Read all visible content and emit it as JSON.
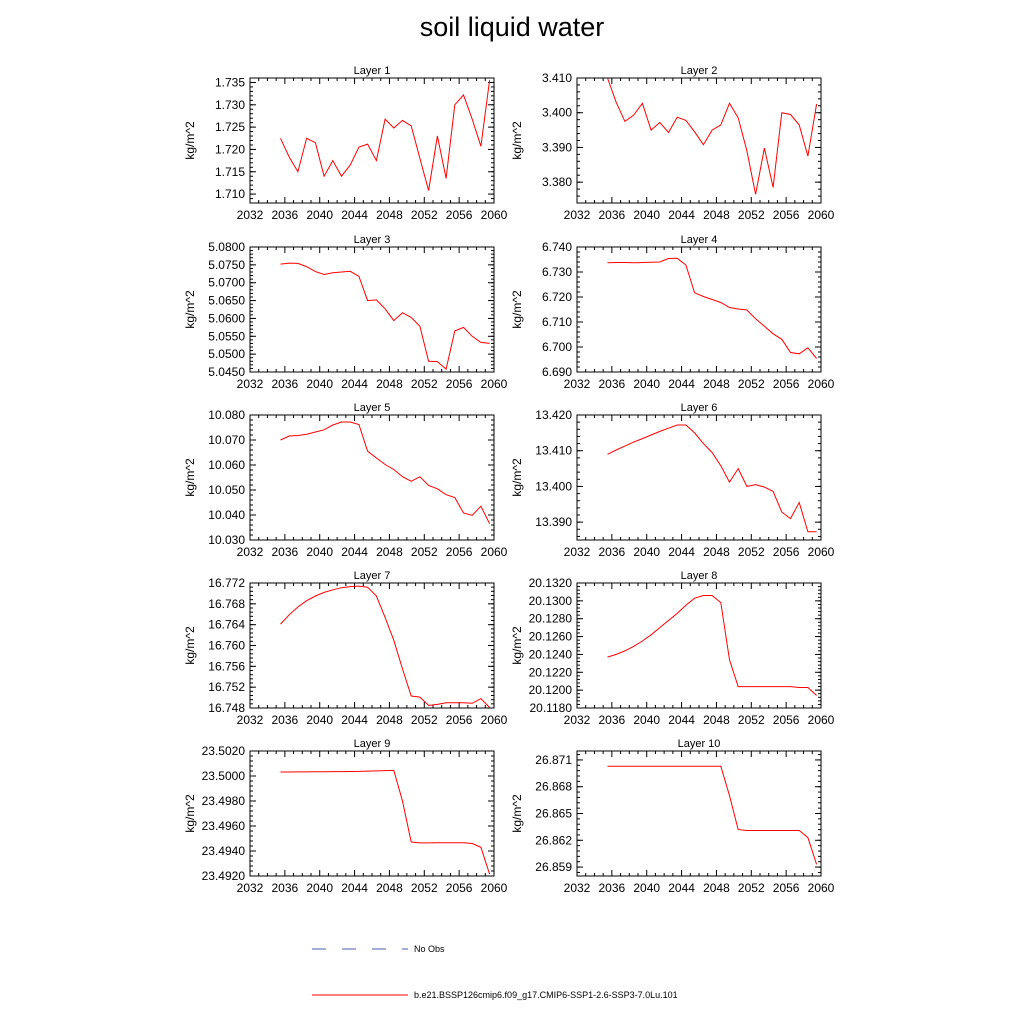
{
  "title": "soil liquid water",
  "chart_data": [
    {
      "type": "line",
      "title": "Layer 1",
      "ylabel": "kg/m^2",
      "xlim": [
        2032,
        2060
      ],
      "ylim": [
        1.708,
        1.736
      ],
      "x_ticks": [
        2032,
        2036,
        2040,
        2044,
        2048,
        2052,
        2056,
        2060
      ],
      "y_ticks": [
        1.71,
        1.715,
        1.72,
        1.725,
        1.73,
        1.735
      ],
      "y_tick_labels": [
        "1.710",
        "1.715",
        "1.720",
        "1.725",
        "1.730",
        "1.735"
      ],
      "series": [
        {
          "name": "b.e21.BSSP126cmip6.f09_g17.CMIP6-SSP1-2.6-SSP3-7.0Lu.101",
          "x": [
            2035.5,
            2036.5,
            2037.5,
            2038.5,
            2039.5,
            2040.5,
            2041.5,
            2042.5,
            2043.5,
            2044.5,
            2045.5,
            2046.5,
            2047.5,
            2048.5,
            2049.5,
            2050.5,
            2051.5,
            2052.5,
            2053.5,
            2054.5,
            2055.5,
            2056.5,
            2057.5,
            2058.5,
            2059.5
          ],
          "y": [
            1.7225,
            1.7183,
            1.715,
            1.7225,
            1.7215,
            1.714,
            1.7175,
            1.714,
            1.7165,
            1.7205,
            1.7212,
            1.7175,
            1.7268,
            1.7248,
            1.7265,
            1.7253,
            1.718,
            1.7108,
            1.723,
            1.7135,
            1.73,
            1.7322,
            1.7268,
            1.7207,
            1.7355
          ]
        }
      ]
    },
    {
      "type": "line",
      "title": "Layer 2",
      "ylabel": "kg/m^2",
      "xlim": [
        2032,
        2060
      ],
      "ylim": [
        3.374,
        3.41
      ],
      "x_ticks": [
        2032,
        2036,
        2040,
        2044,
        2048,
        2052,
        2056,
        2060
      ],
      "y_ticks": [
        3.38,
        3.39,
        3.4,
        3.41
      ],
      "y_tick_labels": [
        "3.380",
        "3.390",
        "3.400",
        "3.410"
      ],
      "series": [
        {
          "name": "b.e21.BSSP126cmip6.f09_g17.CMIP6-SSP1-2.6-SSP3-7.0Lu.101",
          "x": [
            2035.5,
            2036.5,
            2037.5,
            2038.5,
            2039.5,
            2040.5,
            2041.5,
            2042.5,
            2043.5,
            2044.5,
            2045.5,
            2046.5,
            2047.5,
            2048.5,
            2049.5,
            2050.5,
            2051.5,
            2052.5,
            2053.5,
            2054.5,
            2055.5,
            2056.5,
            2057.5,
            2058.5,
            2059.5
          ],
          "y": [
            3.41,
            3.403,
            3.3975,
            3.3993,
            3.4027,
            3.395,
            3.3972,
            3.3943,
            3.3987,
            3.3978,
            3.3945,
            3.3908,
            3.395,
            3.3965,
            3.4027,
            3.3985,
            3.389,
            3.3765,
            3.3898,
            3.3785,
            3.4,
            3.3995,
            3.3965,
            3.3875,
            3.4025
          ]
        }
      ]
    },
    {
      "type": "line",
      "title": "Layer 3",
      "ylabel": "kg/m^2",
      "xlim": [
        2032,
        2060
      ],
      "ylim": [
        5.045,
        5.08
      ],
      "x_ticks": [
        2032,
        2036,
        2040,
        2044,
        2048,
        2052,
        2056,
        2060
      ],
      "y_ticks": [
        5.045,
        5.05,
        5.055,
        5.06,
        5.065,
        5.07,
        5.075,
        5.08
      ],
      "y_tick_labels": [
        "5.0450",
        "5.0500",
        "5.0550",
        "5.0600",
        "5.0650",
        "5.0700",
        "5.0750",
        "5.0800"
      ],
      "series": [
        {
          "name": "b.e21.BSSP126cmip6.f09_g17.CMIP6-SSP1-2.6-SSP3-7.0Lu.101",
          "x": [
            2035.5,
            2036.5,
            2037.5,
            2038.5,
            2039.5,
            2040.5,
            2041.5,
            2042.5,
            2043.5,
            2044.5,
            2045.5,
            2046.5,
            2047.5,
            2048.5,
            2049.5,
            2050.5,
            2051.5,
            2052.5,
            2053.5,
            2054.5,
            2055.5,
            2056.5,
            2057.5,
            2058.5,
            2059.5
          ],
          "y": [
            5.0752,
            5.0755,
            5.0754,
            5.0745,
            5.0731,
            5.0723,
            5.0728,
            5.073,
            5.0732,
            5.0718,
            5.065,
            5.0652,
            5.0627,
            5.0594,
            5.0616,
            5.0603,
            5.0578,
            5.048,
            5.0479,
            5.0458,
            5.0565,
            5.0575,
            5.055,
            5.0533,
            5.053
          ]
        }
      ]
    },
    {
      "type": "line",
      "title": "Layer 4",
      "ylabel": "kg/m^2",
      "xlim": [
        2032,
        2060
      ],
      "ylim": [
        6.69,
        6.74
      ],
      "x_ticks": [
        2032,
        2036,
        2040,
        2044,
        2048,
        2052,
        2056,
        2060
      ],
      "y_ticks": [
        6.69,
        6.7,
        6.71,
        6.72,
        6.73,
        6.74
      ],
      "y_tick_labels": [
        "6.690",
        "6.700",
        "6.710",
        "6.720",
        "6.730",
        "6.740"
      ],
      "series": [
        {
          "name": "b.e21.BSSP126cmip6.f09_g17.CMIP6-SSP1-2.6-SSP3-7.0Lu.101",
          "x": [
            2035.5,
            2036.5,
            2037.5,
            2038.5,
            2039.5,
            2040.5,
            2041.5,
            2042.5,
            2043.5,
            2044.5,
            2045.5,
            2046.5,
            2047.5,
            2048.5,
            2049.5,
            2050.5,
            2051.5,
            2052.5,
            2053.5,
            2054.5,
            2055.5,
            2056.5,
            2057.5,
            2058.5,
            2059.5
          ],
          "y": [
            6.7337,
            6.7338,
            6.7338,
            6.7337,
            6.7338,
            6.7339,
            6.734,
            6.7354,
            6.7355,
            6.7328,
            6.7217,
            6.7202,
            6.719,
            6.7178,
            6.7158,
            6.7152,
            6.7148,
            6.7113,
            6.7083,
            6.7053,
            6.7031,
            6.6978,
            6.6973,
            6.6997,
            6.6954
          ]
        }
      ]
    },
    {
      "type": "line",
      "title": "Layer 5",
      "ylabel": "kg/m^2",
      "xlim": [
        2032,
        2060
      ],
      "ylim": [
        10.03,
        10.08
      ],
      "x_ticks": [
        2032,
        2036,
        2040,
        2044,
        2048,
        2052,
        2056,
        2060
      ],
      "y_ticks": [
        10.03,
        10.04,
        10.05,
        10.06,
        10.07,
        10.08
      ],
      "y_tick_labels": [
        "10.030",
        "10.040",
        "10.050",
        "10.060",
        "10.070",
        "10.080"
      ],
      "series": [
        {
          "name": "b.e21.BSSP126cmip6.f09_g17.CMIP6-SSP1-2.6-SSP3-7.0Lu.101",
          "x": [
            2035.5,
            2036.5,
            2037.5,
            2038.5,
            2039.5,
            2040.5,
            2041.5,
            2042.5,
            2043.5,
            2044.5,
            2045.5,
            2046.5,
            2047.5,
            2048.5,
            2049.5,
            2050.5,
            2051.5,
            2052.5,
            2053.5,
            2054.5,
            2055.5,
            2056.5,
            2057.5,
            2058.5,
            2059.5
          ],
          "y": [
            10.07,
            10.0716,
            10.0718,
            10.0723,
            10.0732,
            10.0741,
            10.076,
            10.0772,
            10.0772,
            10.0762,
            10.0655,
            10.0628,
            10.0602,
            10.0582,
            10.0553,
            10.0535,
            10.0553,
            10.0518,
            10.0505,
            10.0481,
            10.047,
            10.0408,
            10.0399,
            10.0435,
            10.0365
          ]
        }
      ]
    },
    {
      "type": "line",
      "title": "Layer 6",
      "ylabel": "kg/m^2",
      "xlim": [
        2032,
        2060
      ],
      "ylim": [
        13.385,
        13.42
      ],
      "x_ticks": [
        2032,
        2036,
        2040,
        2044,
        2048,
        2052,
        2056,
        2060
      ],
      "y_ticks": [
        13.39,
        13.4,
        13.41,
        13.42
      ],
      "y_tick_labels": [
        "13.390",
        "13.400",
        "13.410",
        "13.420"
      ],
      "series": [
        {
          "name": "b.e21.BSSP126cmip6.f09_g17.CMIP6-SSP1-2.6-SSP3-7.0Lu.101",
          "x": [
            2035.5,
            2036.5,
            2037.5,
            2038.5,
            2039.5,
            2040.5,
            2041.5,
            2042.5,
            2043.5,
            2044.5,
            2045.5,
            2046.5,
            2047.5,
            2048.5,
            2049.5,
            2050.5,
            2051.5,
            2052.5,
            2053.5,
            2054.5,
            2055.5,
            2056.5,
            2057.5,
            2058.5,
            2059.5
          ],
          "y": [
            13.409,
            13.4102,
            13.4113,
            13.4124,
            13.4134,
            13.4144,
            13.4154,
            13.4163,
            13.4172,
            13.4172,
            13.415,
            13.412,
            13.4095,
            13.4058,
            13.4012,
            13.405,
            13.4,
            13.4005,
            13.3998,
            13.3986,
            13.3928,
            13.391,
            13.3955,
            13.3873,
            13.3873
          ]
        }
      ]
    },
    {
      "type": "line",
      "title": "Layer 7",
      "ylabel": "kg/m^2",
      "xlim": [
        2032,
        2060
      ],
      "ylim": [
        16.748,
        16.772
      ],
      "x_ticks": [
        2032,
        2036,
        2040,
        2044,
        2048,
        2052,
        2056,
        2060
      ],
      "y_ticks": [
        16.748,
        16.752,
        16.756,
        16.76,
        16.764,
        16.768,
        16.772
      ],
      "y_tick_labels": [
        "16.748",
        "16.752",
        "16.756",
        "16.760",
        "16.764",
        "16.768",
        "16.772"
      ],
      "series": [
        {
          "name": "b.e21.BSSP126cmip6.f09_g17.CMIP6-SSP1-2.6-SSP3-7.0Lu.101",
          "x": [
            2035.5,
            2036.5,
            2037.5,
            2038.5,
            2039.5,
            2040.5,
            2041.5,
            2042.5,
            2043.5,
            2044.5,
            2045.5,
            2046.5,
            2047.5,
            2048.5,
            2049.5,
            2050.5,
            2051.5,
            2052.5,
            2053.5,
            2054.5,
            2055.5,
            2056.5,
            2057.5,
            2058.5,
            2059.5
          ],
          "y": [
            16.7641,
            16.7659,
            16.7674,
            16.7686,
            16.7695,
            16.7702,
            16.7707,
            16.7711,
            16.7713,
            16.7714,
            16.7712,
            16.7695,
            16.7654,
            16.761,
            16.7555,
            16.7503,
            16.7501,
            16.7485,
            16.7487,
            16.749,
            16.749,
            16.749,
            16.7489,
            16.7498,
            16.7481
          ]
        }
      ]
    },
    {
      "type": "line",
      "title": "Layer 8",
      "ylabel": "kg/m^2",
      "xlim": [
        2032,
        2060
      ],
      "ylim": [
        20.118,
        20.132
      ],
      "x_ticks": [
        2032,
        2036,
        2040,
        2044,
        2048,
        2052,
        2056,
        2060
      ],
      "y_ticks": [
        20.118,
        20.12,
        20.122,
        20.124,
        20.126,
        20.128,
        20.13,
        20.132
      ],
      "y_tick_labels": [
        "20.1180",
        "20.1200",
        "20.1220",
        "20.1240",
        "20.1260",
        "20.1280",
        "20.1300",
        "20.1320"
      ],
      "series": [
        {
          "name": "b.e21.BSSP126cmip6.f09_g17.CMIP6-SSP1-2.6-SSP3-7.0Lu.101",
          "x": [
            2035.5,
            2036.5,
            2037.5,
            2038.5,
            2039.5,
            2040.5,
            2041.5,
            2042.5,
            2043.5,
            2044.5,
            2045.5,
            2046.5,
            2047.5,
            2048.5,
            2049.5,
            2050.5,
            2051.5,
            2052.5,
            2053.5,
            2054.5,
            2055.5,
            2056.5,
            2057.5,
            2058.5,
            2059.5
          ],
          "y": [
            20.1237,
            20.124,
            20.1244,
            20.1249,
            20.1255,
            20.1262,
            20.127,
            20.1278,
            20.1286,
            20.1295,
            20.1303,
            20.1306,
            20.1306,
            20.1298,
            20.1234,
            20.1204,
            20.1204,
            20.1204,
            20.1204,
            20.1204,
            20.1204,
            20.1204,
            20.1203,
            20.1203,
            20.1194
          ]
        }
      ]
    },
    {
      "type": "line",
      "title": "Layer 9",
      "ylabel": "kg/m^2",
      "xlim": [
        2032,
        2060
      ],
      "ylim": [
        23.492,
        23.502
      ],
      "x_ticks": [
        2032,
        2036,
        2040,
        2044,
        2048,
        2052,
        2056,
        2060
      ],
      "y_ticks": [
        23.492,
        23.494,
        23.496,
        23.498,
        23.5,
        23.502
      ],
      "y_tick_labels": [
        "23.4920",
        "23.4940",
        "23.4960",
        "23.4980",
        "23.5000",
        "23.5020"
      ],
      "series": [
        {
          "name": "b.e21.BSSP126cmip6.f09_g17.CMIP6-SSP1-2.6-SSP3-7.0Lu.101",
          "x": [
            2035.5,
            2036.5,
            2037.5,
            2038.5,
            2039.5,
            2040.5,
            2041.5,
            2042.5,
            2043.5,
            2044.5,
            2045.5,
            2046.5,
            2047.5,
            2048.5,
            2049.5,
            2050.5,
            2051.5,
            2052.5,
            2053.5,
            2054.5,
            2055.5,
            2056.5,
            2057.5,
            2058.5,
            2059.5
          ],
          "y": [
            23.50032,
            23.50032,
            23.50033,
            23.50033,
            23.50034,
            23.50034,
            23.50035,
            23.50035,
            23.50036,
            23.50037,
            23.50039,
            23.50041,
            23.50043,
            23.50045,
            23.498,
            23.49472,
            23.49465,
            23.49465,
            23.49466,
            23.49466,
            23.49466,
            23.49466,
            23.4946,
            23.4943,
            23.49215
          ]
        }
      ]
    },
    {
      "type": "line",
      "title": "Layer 10",
      "ylabel": "kg/m^2",
      "xlim": [
        2032,
        2060
      ],
      "ylim": [
        26.858,
        26.872
      ],
      "x_ticks": [
        2032,
        2036,
        2040,
        2044,
        2048,
        2052,
        2056,
        2060
      ],
      "y_ticks": [
        26.859,
        26.862,
        26.865,
        26.868,
        26.871
      ],
      "y_tick_labels": [
        "26.859",
        "26.862",
        "26.865",
        "26.868",
        "26.871"
      ],
      "series": [
        {
          "name": "b.e21.BSSP126cmip6.f09_g17.CMIP6-SSP1-2.6-SSP3-7.0Lu.101",
          "x": [
            2035.5,
            2036.5,
            2037.5,
            2038.5,
            2039.5,
            2040.5,
            2041.5,
            2042.5,
            2043.5,
            2044.5,
            2045.5,
            2046.5,
            2047.5,
            2048.5,
            2049.5,
            2050.5,
            2051.5,
            2052.5,
            2053.5,
            2054.5,
            2055.5,
            2056.5,
            2057.5,
            2058.5,
            2059.5
          ],
          "y": [
            26.8703,
            26.8703,
            26.8703,
            26.8703,
            26.8703,
            26.8703,
            26.8703,
            26.8703,
            26.8703,
            26.8703,
            26.8703,
            26.8703,
            26.8703,
            26.8703,
            26.867,
            26.8632,
            26.8631,
            26.8631,
            26.8631,
            26.8631,
            26.8631,
            26.8631,
            26.8631,
            26.8623,
            26.8593
          ]
        }
      ]
    }
  ],
  "legend": {
    "items": [
      {
        "label": "No Obs",
        "style": "dashed",
        "color": "#4a5fb0"
      },
      {
        "label": "b.e21.BSSP126cmip6.f09_g17.CMIP6-SSP1-2.6-SSP3-7.0Lu.101",
        "style": "solid",
        "color": "#ff0000"
      }
    ]
  },
  "colors": {
    "series": "#ff0000",
    "axes": "#000000",
    "obs": "#4a5fb0"
  }
}
